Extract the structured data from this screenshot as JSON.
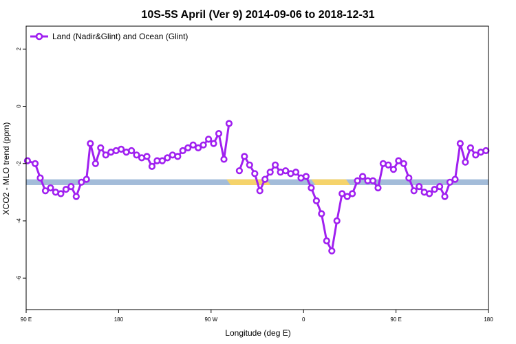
{
  "chart_data": {
    "type": "line",
    "title": "10S-5S April (Ver 9)   2014-09-06 to 2018-12-31",
    "xlabel": "Longitude (deg E)",
    "ylabel": "XCO2 - MLO trend (ppm)",
    "xlim": [
      90,
      450
    ],
    "ylim": [
      -7.1,
      2.8
    ],
    "x_ticks": [
      {
        "value": 90,
        "label": "90 E"
      },
      {
        "value": 162,
        "label": "180"
      },
      {
        "value": 234,
        "label": "90 W"
      },
      {
        "value": 306,
        "label": "0"
      },
      {
        "value": 378,
        "label": "90 E"
      },
      {
        "value": 450,
        "label": "180"
      }
    ],
    "y_ticks": [
      {
        "value": 2,
        "label": "2"
      },
      {
        "value": 0,
        "label": "0"
      },
      {
        "value": -2,
        "label": "-2"
      },
      {
        "value": -4,
        "label": "-4"
      },
      {
        "value": -6,
        "label": "-6"
      }
    ],
    "grid": false,
    "legend_position": "top-left",
    "series": [
      {
        "name": "Land (Nadir&Glint) and Ocean (Glint)",
        "color": "#a020f0",
        "segments": [
          [
            [
              91,
              -1.9
            ],
            [
              97,
              -2.0
            ],
            [
              101,
              -2.5
            ],
            [
              105,
              -2.95
            ],
            [
              109,
              -2.85
            ],
            [
              113,
              -3.0
            ],
            [
              117,
              -3.05
            ],
            [
              121,
              -2.9
            ],
            [
              125,
              -2.8
            ],
            [
              129,
              -3.15
            ],
            [
              133,
              -2.65
            ],
            [
              137,
              -2.55
            ],
            [
              140,
              -1.3
            ],
            [
              144,
              -2.0
            ],
            [
              148,
              -1.45
            ],
            [
              152,
              -1.7
            ],
            [
              156,
              -1.6
            ],
            [
              160,
              -1.55
            ],
            [
              164,
              -1.5
            ],
            [
              168,
              -1.6
            ],
            [
              172,
              -1.55
            ],
            [
              176,
              -1.7
            ],
            [
              180,
              -1.8
            ],
            [
              184,
              -1.75
            ],
            [
              188,
              -2.1
            ],
            [
              192,
              -1.9
            ],
            [
              196,
              -1.9
            ],
            [
              200,
              -1.8
            ],
            [
              204,
              -1.7
            ],
            [
              208,
              -1.75
            ],
            [
              212,
              -1.55
            ],
            [
              216,
              -1.45
            ],
            [
              220,
              -1.35
            ],
            [
              224,
              -1.45
            ],
            [
              228,
              -1.35
            ],
            [
              232,
              -1.15
            ],
            [
              236,
              -1.3
            ],
            [
              240,
              -0.95
            ],
            [
              244,
              -1.85
            ],
            [
              248,
              -0.6
            ]
          ]
        ],
        "segments_2": [
          [
            [
              256,
              -2.25
            ],
            [
              260,
              -1.75
            ],
            [
              264,
              -2.05
            ],
            [
              268,
              -2.35
            ],
            [
              272,
              -2.95
            ],
            [
              276,
              -2.55
            ],
            [
              280,
              -2.3
            ],
            [
              284,
              -2.05
            ],
            [
              288,
              -2.3
            ],
            [
              292,
              -2.25
            ],
            [
              296,
              -2.35
            ],
            [
              300,
              -2.3
            ],
            [
              304,
              -2.5
            ],
            [
              308,
              -2.45
            ],
            [
              312,
              -2.85
            ],
            [
              316,
              -3.3
            ],
            [
              320,
              -3.75
            ],
            [
              324,
              -4.7
            ],
            [
              328,
              -5.05
            ],
            [
              332,
              -4.0
            ],
            [
              336,
              -3.05
            ],
            [
              340,
              -3.15
            ],
            [
              344,
              -3.05
            ],
            [
              348,
              -2.6
            ],
            [
              352,
              -2.45
            ],
            [
              356,
              -2.6
            ],
            [
              360,
              -2.6
            ],
            [
              364,
              -2.85
            ],
            [
              368,
              -2.0
            ],
            [
              372,
              -2.05
            ],
            [
              376,
              -2.2
            ],
            [
              380,
              -1.9
            ],
            [
              384,
              -2.0
            ],
            [
              388,
              -2.5
            ],
            [
              392,
              -2.95
            ],
            [
              396,
              -2.8
            ],
            [
              400,
              -3.0
            ],
            [
              404,
              -3.05
            ],
            [
              408,
              -2.9
            ],
            [
              412,
              -2.8
            ],
            [
              416,
              -3.15
            ],
            [
              420,
              -2.65
            ],
            [
              424,
              -2.55
            ],
            [
              428,
              -1.3
            ],
            [
              432,
              -1.95
            ],
            [
              436,
              -1.45
            ],
            [
              440,
              -1.7
            ],
            [
              444,
              -1.6
            ],
            [
              448,
              -1.55
            ]
          ]
        ]
      }
    ],
    "surface_band": {
      "y_range": [
        -2.75,
        -2.55
      ],
      "ocean_color": "#a3bcd9",
      "land_color": "#f5d36b",
      "land_x_ranges": [
        [
          246,
          277
        ],
        [
          312,
          339
        ]
      ]
    }
  }
}
